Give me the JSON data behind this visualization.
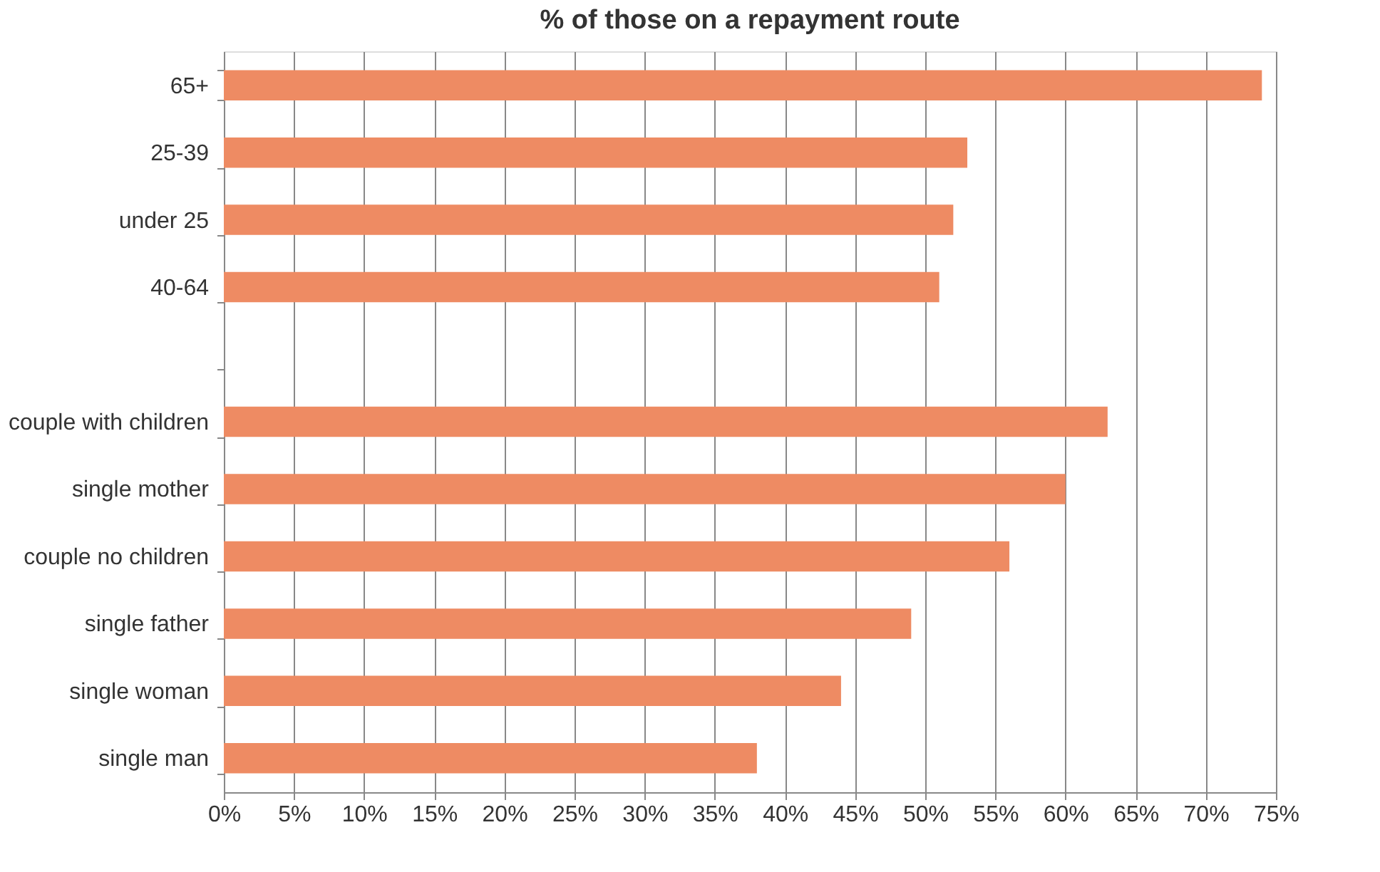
{
  "chart_data": {
    "type": "bar",
    "orientation": "horizontal",
    "title": "% of those on a repayment route",
    "categories": [
      "65+",
      "25-39",
      "under 25",
      "40-64",
      null,
      "couple with children",
      "single mother",
      "couple no children",
      "single father",
      "single woman",
      "single man"
    ],
    "values": [
      74,
      53,
      52,
      51,
      null,
      63,
      60,
      56,
      49,
      44,
      38
    ],
    "color": "#ee8b63",
    "xlim": [
      0,
      75
    ],
    "xticks": [
      {
        "value": 0,
        "label": "0%"
      },
      {
        "value": 5,
        "label": "5%"
      },
      {
        "value": 10,
        "label": "10%"
      },
      {
        "value": 15,
        "label": "15%"
      },
      {
        "value": 20,
        "label": "20%"
      },
      {
        "value": 25,
        "label": "25%"
      },
      {
        "value": 30,
        "label": "30%"
      },
      {
        "value": 35,
        "label": "35%"
      },
      {
        "value": 40,
        "label": "40%"
      },
      {
        "value": 45,
        "label": "45%"
      },
      {
        "value": 50,
        "label": "50%"
      },
      {
        "value": 55,
        "label": "55%"
      },
      {
        "value": 60,
        "label": "60%"
      },
      {
        "value": 65,
        "label": "65%"
      },
      {
        "value": 70,
        "label": "70%"
      },
      {
        "value": 75,
        "label": "75%"
      }
    ],
    "grid": "x"
  }
}
